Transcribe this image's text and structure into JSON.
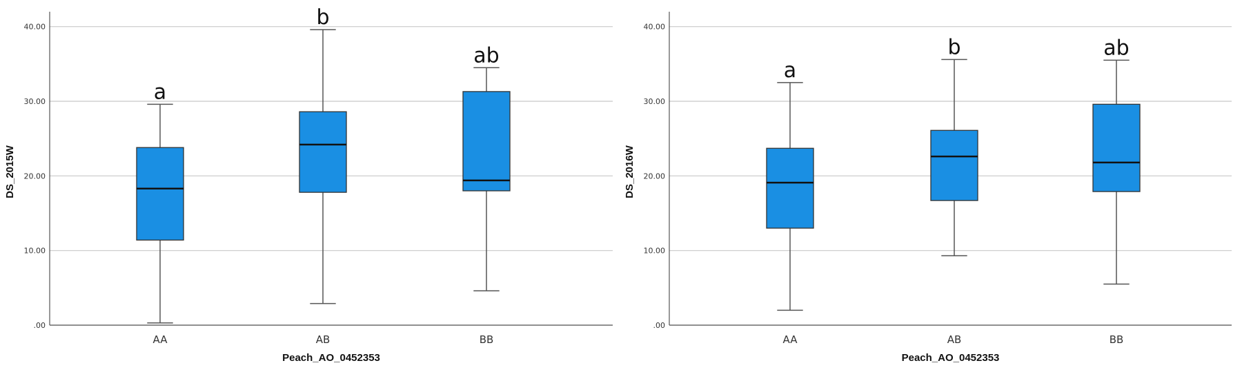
{
  "chart_data": [
    {
      "type": "box",
      "xlabel": "Peach_AO_0452353",
      "ylabel": "DS_2015W",
      "ylim": [
        0,
        42
      ],
      "yticks": [
        0,
        10,
        20,
        30,
        40
      ],
      "ytick_labels": [
        ".00",
        "10.00",
        "20.00",
        "30.00",
        "40.00"
      ],
      "grid": true,
      "box_color": "#1a8fe3",
      "categories": [
        "AA",
        "AB",
        "BB"
      ],
      "boxes": [
        {
          "category": "AA",
          "min": 0.3,
          "q1": 11.4,
          "median": 18.3,
          "q3": 23.8,
          "max": 29.6,
          "label": "a"
        },
        {
          "category": "AB",
          "min": 2.9,
          "q1": 17.8,
          "median": 24.2,
          "q3": 28.6,
          "max": 39.6,
          "label": "b"
        },
        {
          "category": "BB",
          "min": 4.6,
          "q1": 18.0,
          "median": 19.4,
          "q3": 31.3,
          "max": 34.5,
          "label": "ab"
        }
      ]
    },
    {
      "type": "box",
      "xlabel": "Peach_AO_0452353",
      "ylabel": "DS_2016W",
      "ylim": [
        0,
        42
      ],
      "yticks": [
        0,
        10,
        20,
        30,
        40
      ],
      "ytick_labels": [
        ".00",
        "10.00",
        "20.00",
        "30.00",
        "40.00"
      ],
      "grid": true,
      "box_color": "#1a8fe3",
      "categories": [
        "AA",
        "AB",
        "BB"
      ],
      "boxes": [
        {
          "category": "AA",
          "min": 2.0,
          "q1": 13.0,
          "median": 19.1,
          "q3": 23.7,
          "max": 32.5,
          "label": "a"
        },
        {
          "category": "AB",
          "min": 9.3,
          "q1": 16.7,
          "median": 22.6,
          "q3": 26.1,
          "max": 35.6,
          "label": "b"
        },
        {
          "category": "BB",
          "min": 5.5,
          "q1": 17.9,
          "median": 21.8,
          "q3": 29.6,
          "max": 35.5,
          "label": "ab"
        }
      ]
    }
  ]
}
